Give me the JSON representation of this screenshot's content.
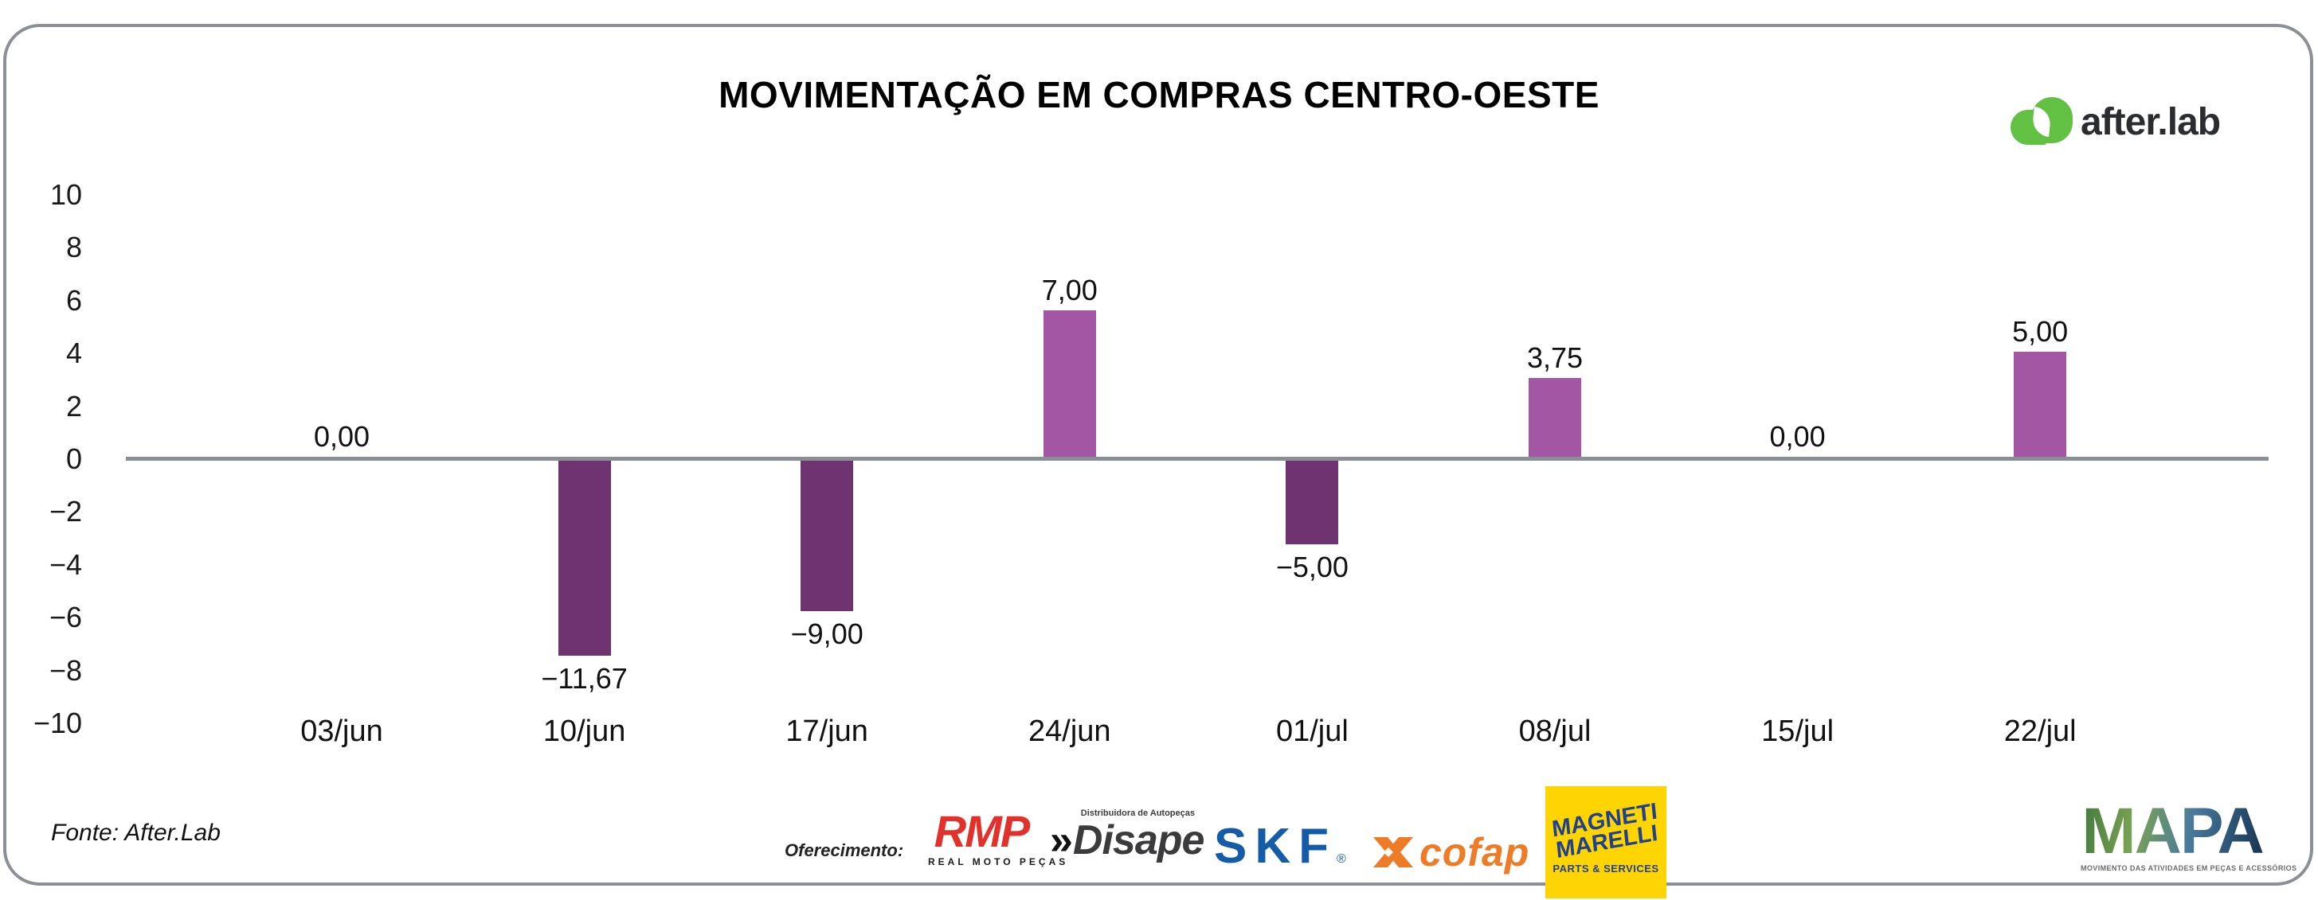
{
  "header": {
    "title": "MOVIMENTAÇÃO EM COMPRAS CENTRO-OESTE",
    "brand_name": "after.lab"
  },
  "brand_colors": {
    "afterlab_green": "#62c043",
    "positive_bar": "#a356a3",
    "negative_bar": "#6e3370",
    "baseline_gray": "#8a8e95",
    "skf_blue": "#155ca8",
    "cofap_orange": "#ee7b26",
    "rmp_red": "#e2302a",
    "magneti_yellow": "#ffd403",
    "magneti_navy": "#20418e"
  },
  "chart_data": {
    "type": "bar",
    "title": "MOVIMENTAÇÃO EM COMPRAS CENTRO-OESTE",
    "categories": [
      "03/jun",
      "10/jun",
      "17/jun",
      "24/jun",
      "01/jul",
      "08/jul",
      "15/jul",
      "22/jul"
    ],
    "values": [
      0,
      -11.67,
      -9,
      7,
      -5,
      3.75,
      0,
      5
    ],
    "value_labels": [
      "0,00",
      "−11,67",
      "−9,00",
      "7,00",
      "−5,00",
      "3,75",
      "0,00",
      "5,00"
    ],
    "y_ticks": [
      10,
      8,
      6,
      4,
      2,
      0,
      -2,
      -4,
      -6,
      -8,
      -10
    ],
    "y_tick_labels": [
      "10",
      "8",
      "6",
      "4",
      "2",
      "0",
      "−2",
      "−4",
      "−6",
      "−8",
      "−10"
    ],
    "ylim": [
      -10,
      10
    ],
    "grid": false,
    "legend_position": "none",
    "baseline_at_zero": true
  },
  "footer": {
    "source": "Fonte: After.Lab",
    "sponsors_label": "Oferecimento:",
    "sponsors": {
      "rmp": {
        "name": "RMP",
        "tagline": "REAL MOTO PEÇAS"
      },
      "disape": {
        "prefix": "»",
        "name": "Disape",
        "tagline": "Distribuidora de Autopeças"
      },
      "skf": {
        "name": "SKF",
        "registered": "®"
      },
      "cofap": {
        "name": "cofap"
      },
      "magneti": {
        "line1": "MAGNETI",
        "line2": "MARELLI",
        "sub": "PARTS & SERVICES"
      },
      "mapa": {
        "name": "MAPA",
        "tagline": "MOVIMENTO DAS ATIVIDADES EM PEÇAS E ACESSÓRIOS"
      }
    }
  }
}
